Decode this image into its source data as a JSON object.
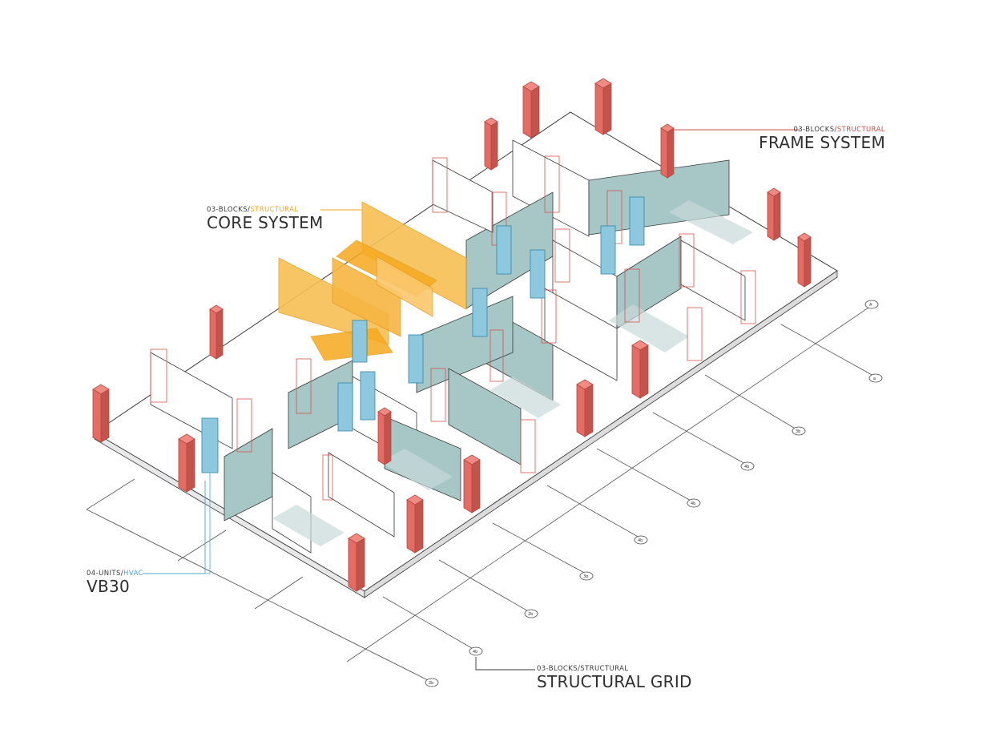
{
  "labels": {
    "core": {
      "category_prefix": "03-BLOCKS/",
      "category_highlight": "STRUCTURAL",
      "title": "CORE SYSTEM"
    },
    "frame": {
      "category_prefix": "03-BLOCKS/",
      "category_highlight": "STRUCTURAL",
      "title": "FRAME SYSTEM"
    },
    "hvac": {
      "category_prefix": "04-UNITS/",
      "category_highlight": "HVAC",
      "title": "VB30"
    },
    "grid": {
      "category_prefix": "03-BLOCKS/STRUCTURAL",
      "category_highlight": "",
      "title": "STRUCTURAL GRID"
    }
  },
  "colors": {
    "core": "#f6b23a",
    "frame": "#e36d65",
    "hvac": "#5fb0cf",
    "wall_shadow": "#9fc1c1",
    "slab": "#ffffff",
    "line": "#3a3a3a",
    "leader_core": "#f2a623",
    "leader_frame": "#c8504a",
    "leader_hvac": "#4aa6cf"
  },
  "grid_bubbles": [
    "A",
    "a",
    "3b",
    "4b",
    "4b",
    "4b",
    "3b",
    "2b",
    "4b",
    "2b"
  ]
}
